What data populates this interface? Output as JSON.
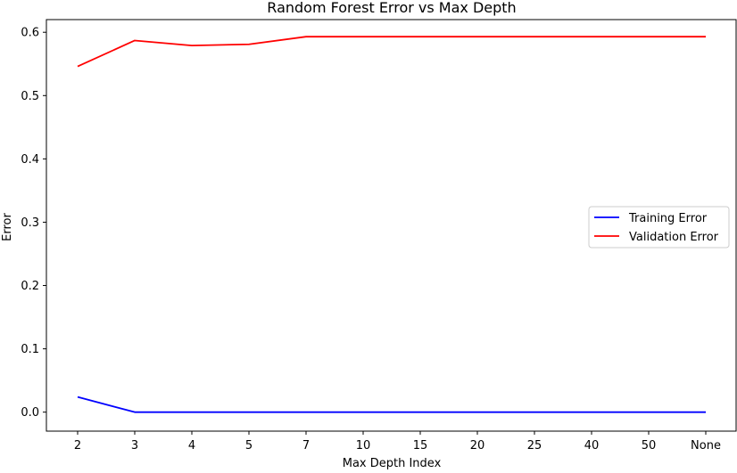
{
  "chart_data": {
    "type": "line",
    "title": "Random Forest Error vs Max Depth",
    "xlabel": "Max Depth Index",
    "ylabel": "Error",
    "categories": [
      "2",
      "3",
      "4",
      "5",
      "7",
      "10",
      "15",
      "20",
      "25",
      "40",
      "50",
      "None"
    ],
    "ylim": [
      -0.03,
      0.62
    ],
    "yticks": [
      0.0,
      0.1,
      0.2,
      0.3,
      0.4,
      0.5,
      0.6
    ],
    "ytick_labels": [
      "0.0",
      "0.1",
      "0.2",
      "0.3",
      "0.4",
      "0.5",
      "0.6"
    ],
    "grid": false,
    "legend_position": "center-right",
    "series": [
      {
        "name": "Training Error",
        "color": "#0000ff",
        "values": [
          0.024,
          0.0,
          0.0,
          0.0,
          0.0,
          0.0,
          0.0,
          0.0,
          0.0,
          0.0,
          0.0,
          0.0
        ]
      },
      {
        "name": "Validation Error",
        "color": "#ff0000",
        "values": [
          0.546,
          0.587,
          0.579,
          0.581,
          0.593,
          0.593,
          0.593,
          0.593,
          0.593,
          0.593,
          0.593,
          0.593
        ]
      }
    ]
  }
}
